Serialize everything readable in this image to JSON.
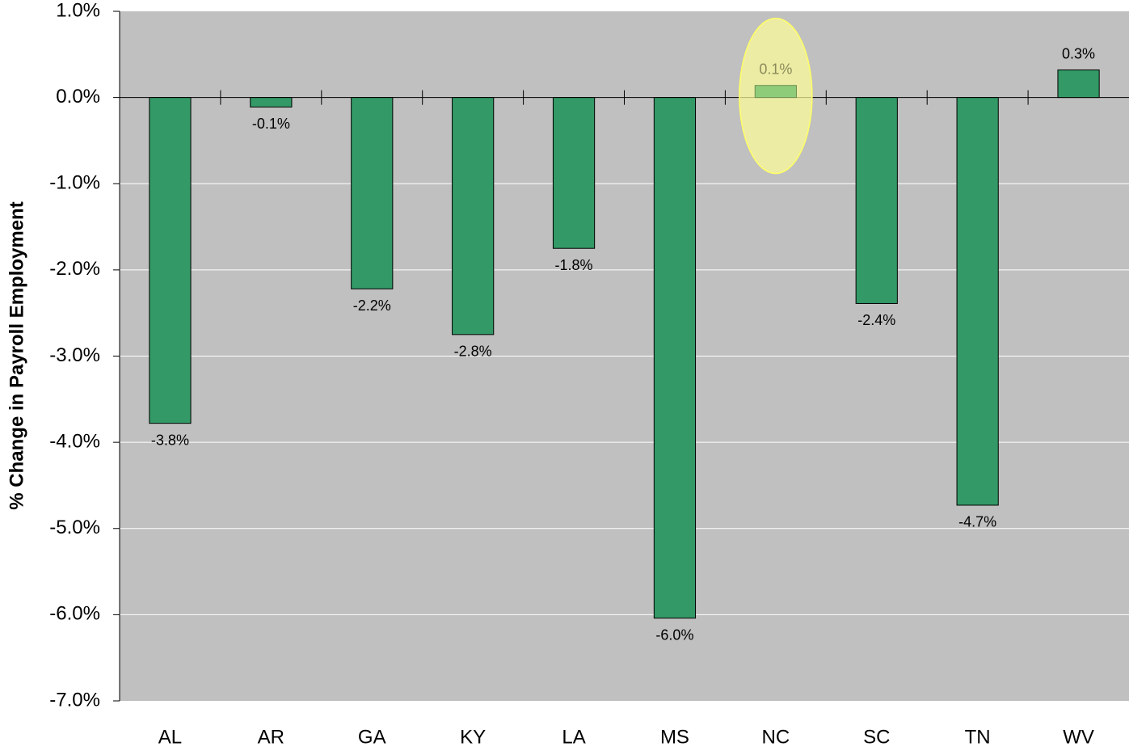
{
  "chart_data": {
    "type": "bar",
    "y_label": "% Change in Payroll Employment",
    "categories": [
      "AL",
      "AR",
      "GA",
      "KY",
      "LA",
      "MS",
      "NC",
      "SC",
      "TN",
      "WV"
    ],
    "values": [
      -3.78,
      -0.11,
      -2.22,
      -2.75,
      -1.75,
      -6.04,
      0.14,
      -2.39,
      -4.73,
      0.32
    ],
    "value_labels": [
      "-3.8%",
      "-0.1%",
      "-2.2%",
      "-2.8%",
      "-1.8%",
      "-6.0%",
      "0.1%",
      "-2.4%",
      "-4.7%",
      "0.3%"
    ],
    "color": "#339966",
    "highlight": "NC",
    "highlight_color": "#8fcc7a",
    "ylim": [
      -7,
      1
    ],
    "yticks": [
      {
        "value": -7,
        "label": "-7.0%"
      },
      {
        "value": -6,
        "label": "-6.0%"
      },
      {
        "value": -5,
        "label": "-5.0%"
      },
      {
        "value": -4,
        "label": "-4.0%"
      },
      {
        "value": -3,
        "label": "-3.0%"
      },
      {
        "value": -2,
        "label": "-2.0%"
      },
      {
        "value": -1,
        "label": "-1.0%"
      },
      {
        "value": 0,
        "label": "0.0%"
      },
      {
        "value": 1,
        "label": "1.0%"
      }
    ],
    "grid": true
  }
}
